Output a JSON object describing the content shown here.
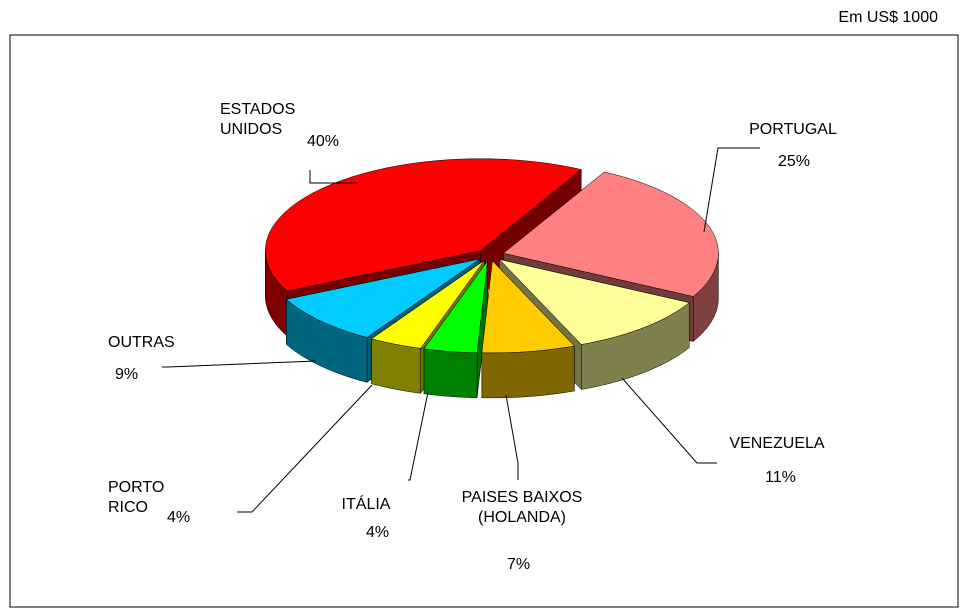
{
  "chart_data": {
    "type": "pie3d",
    "subtitle": "Em US$ 1000",
    "categories": [
      "PORTUGAL",
      "VENEZUELA",
      "PAISES BAIXOS (HOLANDA)",
      "ITÁLIA",
      "PORTO RICO",
      "OUTRAS",
      "ESTADOS UNIDOS"
    ],
    "values": [
      25,
      11,
      7,
      4,
      4,
      9,
      40
    ],
    "value_labels": [
      "25%",
      "11%",
      "7%",
      "4%",
      "4%",
      "9%",
      "40%"
    ],
    "colors": [
      "#ff8080",
      "#ffff99",
      "#ffcc00",
      "#00ff00",
      "#ffff00",
      "#00ccff",
      "#ff0000"
    ]
  }
}
